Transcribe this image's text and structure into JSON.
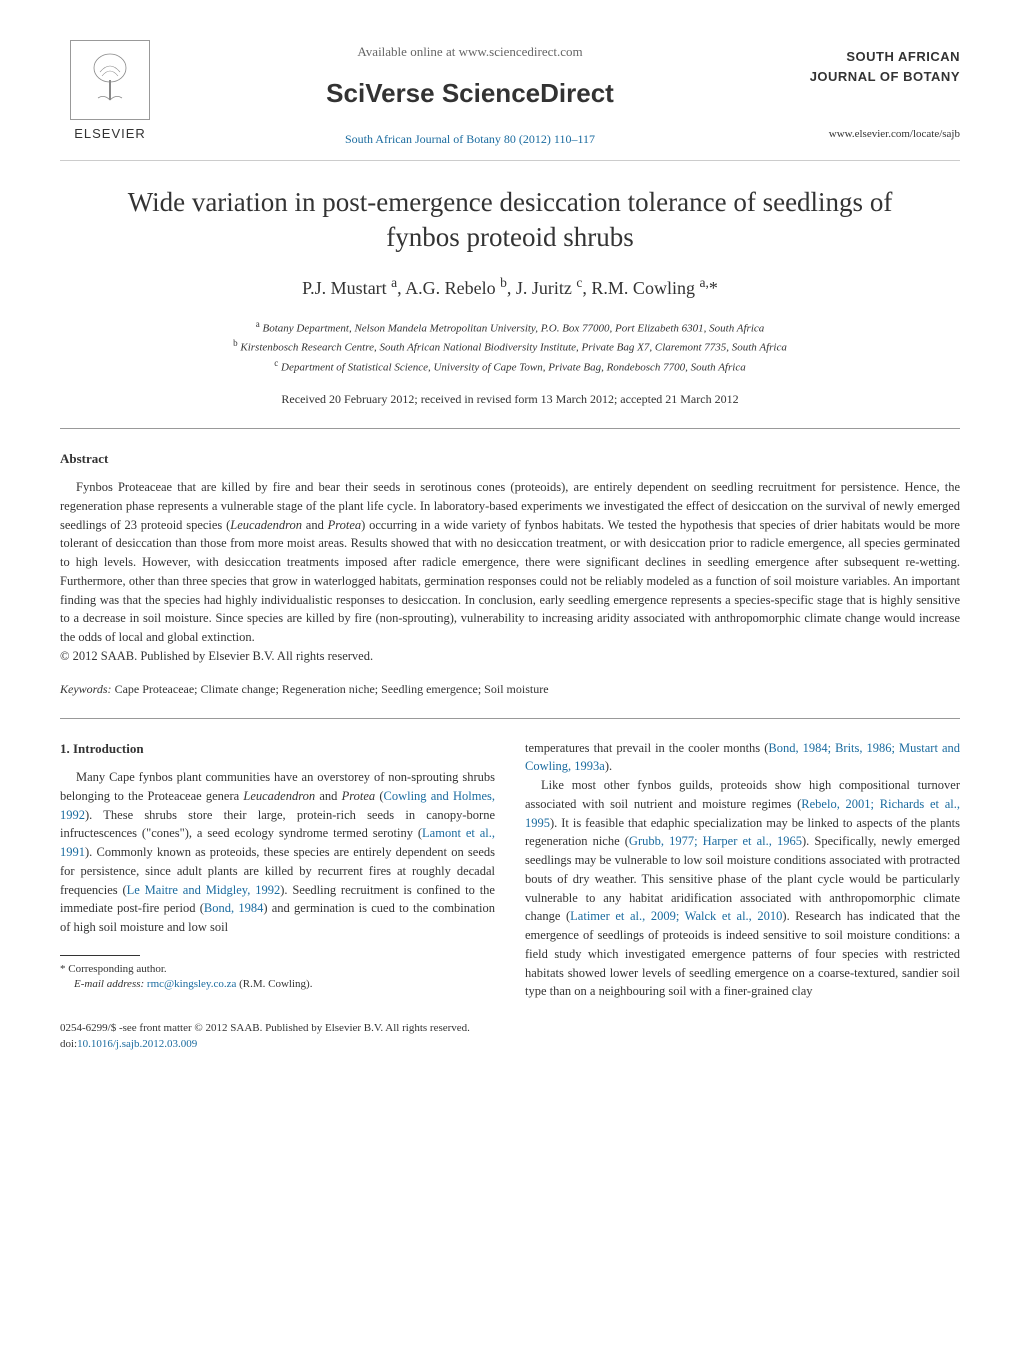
{
  "header": {
    "publisher_logo_text": "ELSEVIER",
    "available_online": "Available online at www.sciencedirect.com",
    "platform": "SciVerse ScienceDirect",
    "journal_citation": "South African Journal of Botany 80 (2012) 110–117",
    "journal_name_line1": "SOUTH AFRICAN",
    "journal_name_line2": "JOURNAL OF BOTANY",
    "journal_url": "www.elsevier.com/locate/sajb"
  },
  "title": "Wide variation in post-emergence desiccation tolerance of seedlings of fynbos proteoid shrubs",
  "authors_html": "P.J. Mustart <sup>a</sup>, A.G. Rebelo <sup>b</sup>, J. Juritz <sup>c</sup>, R.M. Cowling <sup>a,</sup>*",
  "affiliations": {
    "a": "Botany Department, Nelson Mandela Metropolitan University, P.O. Box 77000, Port Elizabeth 6301, South Africa",
    "b": "Kirstenbosch Research Centre, South African National Biodiversity Institute, Private Bag X7, Claremont 7735, South Africa",
    "c": "Department of Statistical Science, University of Cape Town, Private Bag, Rondebosch 7700, South Africa"
  },
  "dates": "Received 20 February 2012; received in revised form 13 March 2012; accepted 21 March 2012",
  "abstract": {
    "heading": "Abstract",
    "body_pre": "Fynbos Proteaceae that are killed by fire and bear their seeds in serotinous cones (proteoids), are entirely dependent on seedling recruitment for persistence. Hence, the regeneration phase represents a vulnerable stage of the plant life cycle. In laboratory-based experiments we investigated the effect of desiccation on the survival of newly emerged seedlings of 23 proteoid species (",
    "body_italic1": "Leucadendron",
    "body_mid1": " and ",
    "body_italic2": "Protea",
    "body_post": ") occurring in a wide variety of fynbos habitats. We tested the hypothesis that species of drier habitats would be more tolerant of desiccation than those from more moist areas. Results showed that with no desiccation treatment, or with desiccation prior to radicle emergence, all species germinated to high levels. However, with desiccation treatments imposed after radicle emergence, there were significant declines in seedling emergence after subsequent re-wetting. Furthermore, other than three species that grow in waterlogged habitats, germination responses could not be reliably modeled as a function of soil moisture variables. An important finding was that the species had highly individualistic responses to desiccation. In conclusion, early seedling emergence represents a species-specific stage that is highly sensitive to a decrease in soil moisture. Since species are killed by fire (non-sprouting), vulnerability to increasing aridity associated with anthropomorphic climate change would increase the odds of local and global extinction.",
    "copyright": "© 2012 SAAB. Published by Elsevier B.V. All rights reserved."
  },
  "keywords": {
    "label": "Keywords:",
    "text": " Cape Proteaceae; Climate change; Regeneration niche; Seedling emergence; Soil moisture"
  },
  "intro": {
    "heading": "1. Introduction",
    "p1_a": "Many Cape fynbos plant communities have an overstorey of non-sprouting shrubs belonging to the Proteaceae genera ",
    "p1_i1": "Leucadendron",
    "p1_b": " and ",
    "p1_i2": "Protea",
    "p1_c": " (",
    "p1_ref1": "Cowling and Holmes, 1992",
    "p1_d": "). These shrubs store their large, protein-rich seeds in canopy-borne infructescences (\"cones\"), a seed ecology syndrome termed serotiny (",
    "p1_ref2": "Lamont et al., 1991",
    "p1_e": "). Commonly known as proteoids, these species are entirely dependent on seeds for persistence, since adult plants are killed by recurrent fires at roughly decadal frequencies (",
    "p1_ref3": "Le Maitre and Midgley, 1992",
    "p1_f": "). Seedling recruitment is confined to the immediate post-fire period (",
    "p1_ref4": "Bond, 1984",
    "p1_g": ") and germination is cued to the combination of high soil moisture and low soil",
    "col2_cont_a": "temperatures that prevail in the cooler months (",
    "col2_cont_ref": "Bond, 1984; Brits, 1986; Mustart and Cowling, 1993a",
    "col2_cont_b": ").",
    "p2_a": "Like most other fynbos guilds, proteoids show high compositional turnover associated with soil nutrient and moisture regimes (",
    "p2_ref1": "Rebelo, 2001; Richards et al., 1995",
    "p2_b": "). It is feasible that edaphic specialization may be linked to aspects of the plants regeneration niche (",
    "p2_ref2": "Grubb, 1977; Harper et al., 1965",
    "p2_c": "). Specifically, newly emerged seedlings may be vulnerable to low soil moisture conditions associated with protracted bouts of dry weather. This sensitive phase of the plant cycle would be particularly vulnerable to any habitat aridification associated with anthropomorphic climate change (",
    "p2_ref3": "Latimer et al., 2009; Walck et al., 2010",
    "p2_d": "). Research has indicated that the emergence of seedlings of proteoids is indeed sensitive to soil moisture conditions: a field study which investigated emergence patterns of four species with restricted habitats showed lower levels of seedling emergence on a coarse-textured, sandier soil type than on a neighbouring soil with a finer-grained clay"
  },
  "footnote": {
    "corr": "* Corresponding author.",
    "email_label": "E-mail address:",
    "email": "rmc@kingsley.co.za",
    "email_who": " (R.M. Cowling)."
  },
  "bottom": {
    "issn": "0254-6299/$ -see front matter © 2012 SAAB. Published by Elsevier B.V. All rights reserved.",
    "doi_label": "doi:",
    "doi": "10.1016/j.sajb.2012.03.009"
  },
  "colors": {
    "link": "#1a6b9f",
    "text": "#333333",
    "muted": "#666666"
  }
}
